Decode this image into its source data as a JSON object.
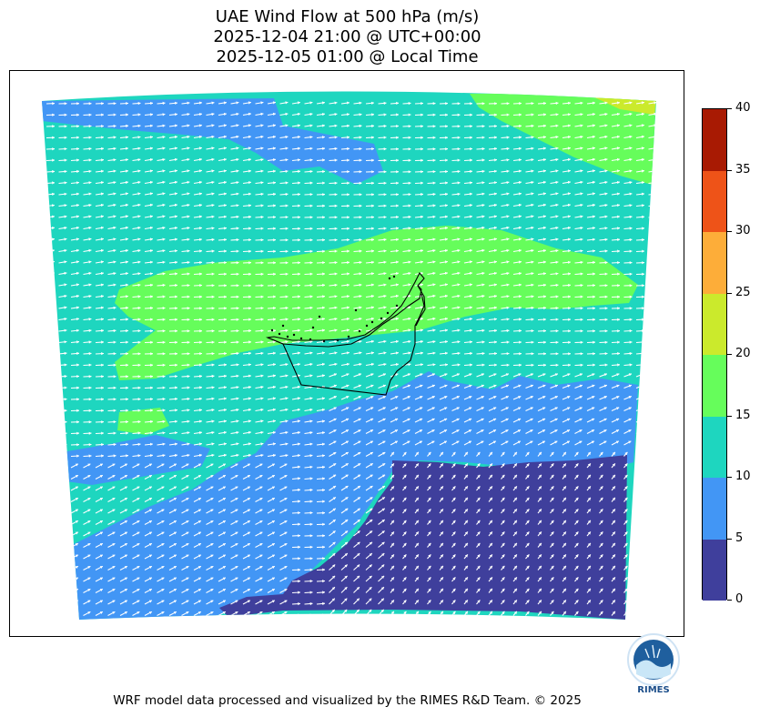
{
  "title": {
    "line1": "UAE Wind Flow at 500 hPa (m/s)",
    "line2": "2025-12-04 21:00 @ UTC+00:00",
    "line3": "2025-12-05 01:00 @ Local Time"
  },
  "colors": {
    "levels": [
      "#3f3f9c",
      "#4296f5",
      "#1ed6bf",
      "#66fd5b",
      "#cbea2c",
      "#fdad39",
      "#ee5318",
      "#a81a03"
    ],
    "arrow": "#ffffff",
    "border": "#000000"
  },
  "chart_data": {
    "type": "heatmap",
    "title": "UAE Wind Flow at 500 hPa (m/s)",
    "variable": "wind speed",
    "unit": "m/s",
    "colorbar": {
      "ticks": [
        "0",
        "5",
        "10",
        "15",
        "20",
        "25",
        "30",
        "35",
        "40"
      ],
      "range": [
        0,
        40
      ],
      "bins": [
        [
          0,
          5
        ],
        [
          5,
          10
        ],
        [
          10,
          15
        ],
        [
          15,
          20
        ],
        [
          20,
          25
        ],
        [
          25,
          30
        ],
        [
          30,
          35
        ],
        [
          35,
          40
        ]
      ]
    },
    "wind_direction": "predominantly westerly to west-southwesterly; southwesterly in the southeast",
    "speed_regions": [
      {
        "range": "0-5",
        "where": "southeast corner"
      },
      {
        "range": "5-10",
        "where": "southwest band and north-central strip"
      },
      {
        "range": "10-15",
        "where": "most of the domain"
      },
      {
        "range": "15-20",
        "where": "central belt over the UAE coast and northeast corner"
      },
      {
        "range": "20-25",
        "where": "small patch in the far northeast"
      }
    ]
  },
  "credit": "WRF model data processed and visualized by the RIMES R&D Team. © 2025",
  "logo": {
    "text": "RIMES"
  }
}
